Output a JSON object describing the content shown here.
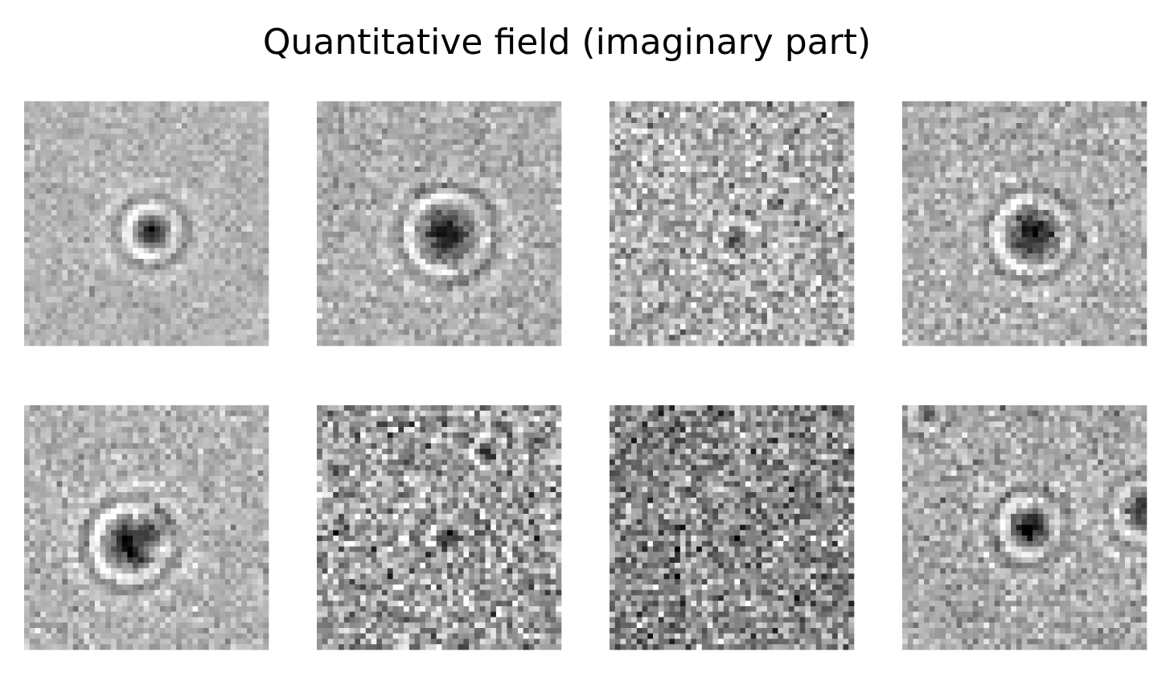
{
  "title": "Quantitative field (imaginary part)"
}
